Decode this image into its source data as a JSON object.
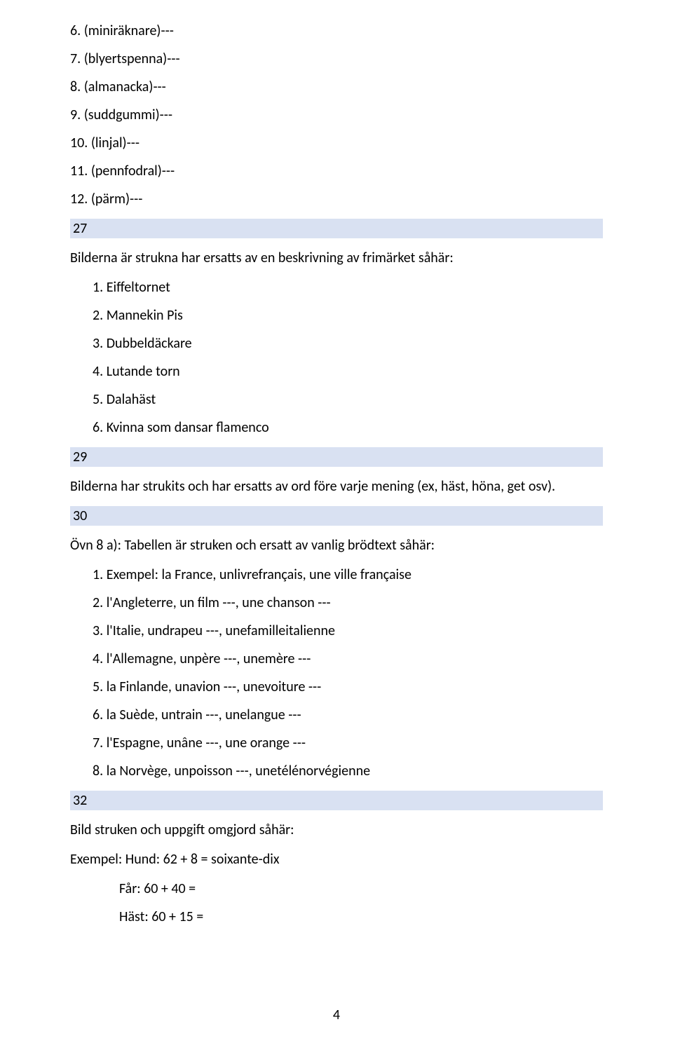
{
  "topList": [
    "6. (miniräknare)---",
    "7. (blyertspenna)---",
    "8. (almanacka)---",
    "9. (suddgummi)---",
    "10. (linjal)---",
    "11. (pennfodral)---",
    "12. (pärm)---"
  ],
  "section27": {
    "header": "27",
    "intro": "Bilderna är strukna har ersatts av en beskrivning av frimärket såhär:",
    "items": [
      "1. Eiffeltornet",
      "2. Mannekin Pis",
      "3. Dubbeldäckare",
      "4. Lutande torn",
      "5. Dalahäst",
      "6. Kvinna som dansar flamenco"
    ]
  },
  "section29": {
    "header": "29",
    "text": "Bilderna har strukits och har ersatts av ord före varje mening (ex, häst, höna, get osv)."
  },
  "section30": {
    "header": "30",
    "intro": "Övn 8 a): Tabellen är struken och ersatt av vanlig brödtext såhär:",
    "items": [
      "1. Exempel: la France, unlivrefrançais, une ville française",
      "2. l'Angleterre, un film ---, une chanson ---",
      "3. l'Italie, undrapeu ---, unefamilleitalienne",
      "4. l'Allemagne, unpère ---, unemère ---",
      "5. la Finlande, unavion ---, unevoiture ---",
      "6. la Suède, untrain ---, unelangue ---",
      "7. l'Espagne, unâne ---, une orange ---",
      "8. la Norvège, unpoisson ---, unetélénorvégienne"
    ]
  },
  "section32": {
    "header": "32",
    "text1": "Bild struken och uppgift omgjord såhär:",
    "text2": "Exempel: Hund: 62 + 8 = soixante-dix",
    "sub": [
      "Får: 60 + 40 =",
      "Häst: 60 + 15 ="
    ]
  },
  "pageNumber": "4",
  "style": {
    "headerBg": "#d9e1f2",
    "textColor": "#000000",
    "bgColor": "#ffffff",
    "fontSize": 20
  }
}
